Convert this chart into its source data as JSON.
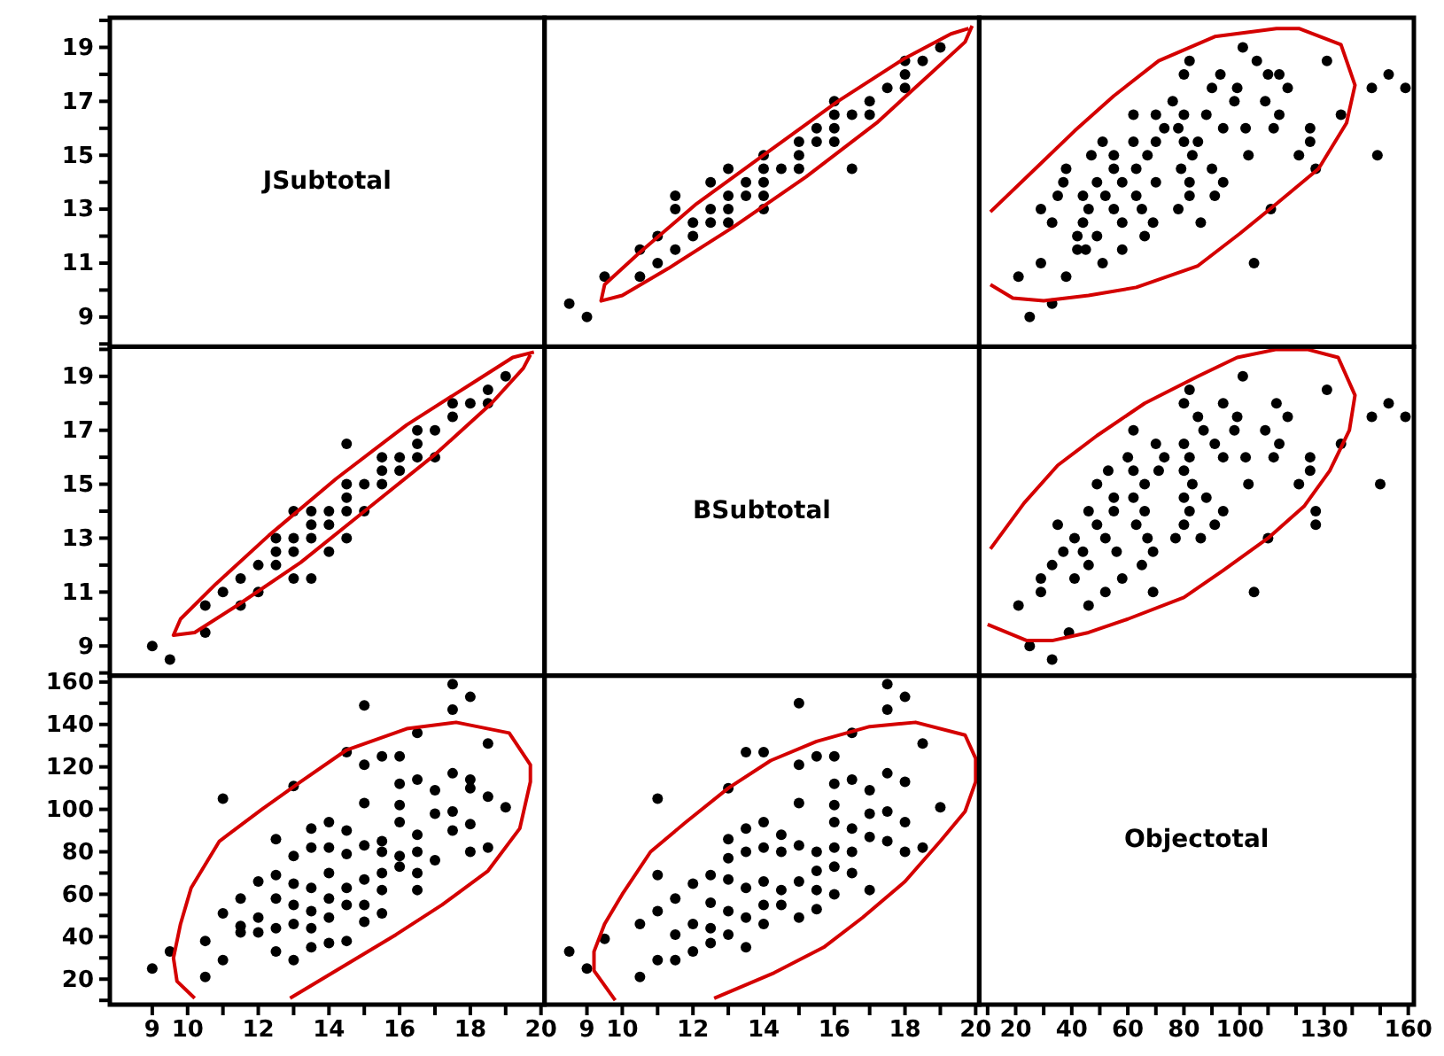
{
  "chart_data": [
    {
      "type": "scatter",
      "title": "JSubtotal",
      "tick_labels": "y",
      "xlim": [
        7.8,
        20.1
      ],
      "ylim": [
        7.9,
        20.1
      ],
      "yticks": [
        {
          "value": 8,
          "label": null
        },
        9,
        {
          "value": 10,
          "label": null
        },
        11,
        {
          "value": 12,
          "label": null
        },
        13,
        {
          "value": 14,
          "label": null
        },
        15,
        {
          "value": 16,
          "label": null
        },
        17,
        {
          "value": 18,
          "label": null
        },
        19,
        {
          "value": 20,
          "label": null
        }
      ]
    },
    {
      "type": "scatter",
      "marker": "circle",
      "tick_labels": false,
      "xlim": [
        7.8,
        20.1
      ],
      "ylim": [
        7.9,
        20.1
      ],
      "series": [
        {
          "type": "scatter",
          "color": "#000000",
          "x": [
            9,
            8.5,
            9.5,
            10.5,
            10.5,
            11,
            11.5,
            11,
            12,
            12,
            12.5,
            12.5,
            11.5,
            11.5,
            13,
            13,
            13,
            13.5,
            13.5,
            12.5,
            14,
            14,
            14,
            14,
            14,
            13,
            14.5,
            15,
            15,
            15,
            15.5,
            15.5,
            16,
            16,
            16,
            16,
            16.5,
            17,
            17,
            17.5,
            18,
            18,
            18.5,
            18,
            19,
            16.5
          ],
          "values": [
            9,
            9.5,
            10.5,
            10.5,
            11.5,
            11,
            11.5,
            12,
            12,
            12.5,
            12.5,
            13,
            13,
            13.5,
            12.5,
            13,
            13.5,
            13.5,
            14,
            14,
            13,
            13.5,
            14,
            14.5,
            15,
            14.5,
            14.5,
            14.5,
            15,
            15.5,
            15.5,
            16,
            15.5,
            16,
            16.5,
            17,
            16.5,
            16.5,
            17,
            17.5,
            17.5,
            18,
            18.5,
            18.5,
            19,
            14.5
          ]
        },
        {
          "type": "line",
          "color": "#d40000",
          "marker": "none",
          "x": [
            19.9,
            19.7,
            18.7,
            17.2,
            15.2,
            13.1,
            11.3,
            10,
            9.4,
            9.5,
            10.5,
            12.1,
            14.1,
            16.1,
            18,
            19.3,
            19.8
          ],
          "values": [
            19.8,
            19.2,
            18,
            16.2,
            14.2,
            12.3,
            10.8,
            9.8,
            9.6,
            10.2,
            11.4,
            13.2,
            15.1,
            17,
            18.6,
            19.5,
            19.7
          ]
        }
      ]
    },
    {
      "type": "scatter",
      "marker": "circle",
      "tick_labels": false,
      "xlim": [
        7,
        162
      ],
      "ylim": [
        7.9,
        20.1
      ],
      "series": [
        {
          "type": "scatter",
          "color": "#000000",
          "x": [
            25,
            33,
            38,
            21,
            29,
            105,
            51,
            58,
            45,
            42,
            66,
            49,
            42,
            86,
            69,
            58,
            44,
            33,
            111,
            78,
            65,
            55,
            46,
            29,
            91,
            82,
            63,
            52,
            44,
            35,
            94,
            82,
            70,
            58,
            49,
            37,
            127,
            90,
            79,
            63,
            55,
            38,
            149,
            121,
            103,
            83,
            67,
            55,
            47,
            125,
            85,
            80,
            70,
            62,
            51,
            125,
            112,
            102,
            94,
            78,
            73,
            136,
            114,
            88,
            80,
            70,
            62,
            109,
            98,
            76,
            159,
            147,
            117,
            99,
            90,
            153,
            114,
            110,
            93,
            80,
            131,
            106,
            82,
            101
          ],
          "values": [
            9,
            9.5,
            10.5,
            10.5,
            11,
            11,
            11,
            11.5,
            11.5,
            11.5,
            12,
            12,
            12,
            12.5,
            12.5,
            12.5,
            12.5,
            12.5,
            13,
            13,
            13,
            13,
            13,
            13,
            13.5,
            13.5,
            13.5,
            13.5,
            13.5,
            13.5,
            14,
            14,
            14,
            14,
            14,
            14,
            14.5,
            14.5,
            14.5,
            14.5,
            14.5,
            14.5,
            15,
            15,
            15,
            15,
            15,
            15,
            15,
            15.5,
            15.5,
            15.5,
            15.5,
            15.5,
            15.5,
            16,
            16,
            16,
            16,
            16,
            16,
            16.5,
            16.5,
            16.5,
            16.5,
            16.5,
            16.5,
            17,
            17,
            17,
            17.5,
            17.5,
            17.5,
            17.5,
            17.5,
            18,
            18,
            18,
            18,
            18,
            18.5,
            18.5,
            18.5,
            19
          ]
        },
        {
          "type": "line",
          "color": "#d40000",
          "marker": "none",
          "x": [
            11,
            27,
            41,
            55,
            71,
            91,
            113,
            121,
            136,
            141,
            138,
            128,
            113,
            100,
            85,
            63,
            46,
            30,
            19,
            11
          ],
          "values": [
            12.9,
            14.5,
            15.9,
            17.2,
            18.5,
            19.4,
            19.7,
            19.7,
            19.1,
            17.6,
            16.2,
            14.5,
            13.2,
            12.1,
            10.9,
            10.1,
            9.8,
            9.6,
            9.7,
            10.2
          ]
        }
      ]
    },
    {
      "type": "scatter",
      "marker": "circle",
      "tick_labels": "y",
      "xlim": [
        7.8,
        20.1
      ],
      "ylim": [
        7.9,
        20.1
      ],
      "yticks": [
        {
          "value": 8,
          "label": null
        },
        9,
        {
          "value": 10,
          "label": null
        },
        11,
        {
          "value": 12,
          "label": null
        },
        13,
        {
          "value": 14,
          "label": null
        },
        15,
        {
          "value": 16,
          "label": null
        },
        17,
        {
          "value": 18,
          "label": null
        },
        19,
        {
          "value": 20,
          "label": null
        }
      ],
      "series": [
        {
          "type": "scatter",
          "color": "#000000",
          "x": [
            9,
            9.5,
            10.5,
            10.5,
            11.5,
            11,
            11.5,
            12,
            12,
            12.5,
            12.5,
            13,
            13,
            13.5,
            12.5,
            13,
            13.5,
            13.5,
            14,
            14,
            13,
            13.5,
            14,
            14.5,
            15,
            14.5,
            14.5,
            14.5,
            15,
            15.5,
            15.5,
            16,
            15.5,
            16,
            16.5,
            17,
            16.5,
            16.5,
            17,
            17.5,
            17.5,
            18,
            18.5,
            18.5,
            19,
            14.5
          ],
          "values": [
            9,
            8.5,
            9.5,
            10.5,
            10.5,
            11,
            11.5,
            11,
            12,
            12,
            12.5,
            12.5,
            11.5,
            11.5,
            13,
            13,
            13,
            13.5,
            13.5,
            12.5,
            14,
            14,
            14,
            14,
            14,
            13,
            14.5,
            15,
            15,
            15,
            15.5,
            15.5,
            16,
            16,
            16,
            16,
            16.5,
            17,
            17,
            17.5,
            18,
            18,
            18.5,
            18,
            19,
            16.5
          ]
        },
        {
          "type": "line",
          "color": "#d40000",
          "marker": "none",
          "x": [
            19.8,
            19.2,
            18,
            16.2,
            14.2,
            12.3,
            10.8,
            9.8,
            9.6,
            10.2,
            11.4,
            13.2,
            15.1,
            17,
            18.6,
            19.5,
            19.7
          ],
          "values": [
            19.9,
            19.7,
            18.7,
            17.2,
            15.2,
            13.1,
            11.3,
            10,
            9.4,
            9.5,
            10.5,
            12.1,
            14.1,
            16.1,
            18,
            19.3,
            19.8
          ]
        }
      ]
    },
    {
      "type": "other",
      "title": "BSubtotal"
    },
    {
      "type": "scatter",
      "marker": "circle",
      "tick_labels": false,
      "xlim": [
        7,
        162
      ],
      "ylim": [
        7.9,
        20.1
      ],
      "series": [
        {
          "type": "scatter",
          "color": "#000000",
          "x": [
            33,
            25,
            39,
            21,
            46,
            105,
            69,
            52,
            29,
            58,
            41,
            29,
            65,
            46,
            33,
            69,
            56,
            44,
            37,
            110,
            86,
            77,
            67,
            52,
            41,
            127,
            91,
            80,
            63,
            49,
            35,
            127,
            94,
            82,
            66,
            55,
            46,
            88,
            80,
            62,
            55,
            150,
            121,
            103,
            83,
            66,
            49,
            125,
            80,
            71,
            62,
            53,
            125,
            112,
            102,
            94,
            82,
            73,
            60,
            136,
            114,
            91,
            80,
            70,
            109,
            98,
            87,
            62,
            159,
            147,
            117,
            99,
            85,
            153,
            113,
            94,
            80,
            131,
            82,
            101
          ],
          "values": [
            8.5,
            9,
            9.5,
            10.5,
            10.5,
            11,
            11,
            11,
            11,
            11.5,
            11.5,
            11.5,
            12,
            12,
            12,
            12.5,
            12.5,
            12.5,
            12.5,
            13,
            13,
            13,
            13,
            13,
            13,
            13.5,
            13.5,
            13.5,
            13.5,
            13.5,
            13.5,
            14,
            14,
            14,
            14,
            14,
            14,
            14.5,
            14.5,
            14.5,
            14.5,
            15,
            15,
            15,
            15,
            15,
            15,
            15.5,
            15.5,
            15.5,
            15.5,
            15.5,
            16,
            16,
            16,
            16,
            16,
            16,
            16,
            16.5,
            16.5,
            16.5,
            16.5,
            16.5,
            17,
            17,
            17,
            17,
            17.5,
            17.5,
            17.5,
            17.5,
            17.5,
            18,
            18,
            18,
            18,
            18.5,
            18.5,
            19
          ]
        },
        {
          "type": "line",
          "color": "#d40000",
          "marker": "none",
          "x": [
            11,
            23,
            35,
            49,
            66,
            85,
            99,
            113,
            124,
            135,
            141,
            139,
            132,
            123,
            110,
            94,
            80,
            60,
            46,
            33,
            24,
            10
          ],
          "values": [
            12.6,
            14.3,
            15.7,
            16.8,
            18,
            19,
            19.7,
            20,
            20,
            19.7,
            18.3,
            17,
            15.5,
            14.2,
            13,
            11.8,
            10.8,
            10,
            9.5,
            9.2,
            9.2,
            9.8
          ]
        }
      ]
    },
    {
      "type": "scatter",
      "marker": "circle",
      "xlim": [
        7.8,
        20.1
      ],
      "ylim": [
        8,
        163
      ],
      "xticks": [
        9,
        10,
        {
          "value": 11,
          "label": null
        },
        12,
        {
          "value": 13,
          "label": null
        },
        14,
        {
          "value": 15,
          "label": null
        },
        16,
        {
          "value": 17,
          "label": null
        },
        18,
        {
          "value": 19,
          "label": null
        },
        20
      ],
      "yticks": [
        {
          "value": 10,
          "label": null
        },
        20,
        {
          "value": 30,
          "label": null
        },
        40,
        {
          "value": 50,
          "label": null
        },
        60,
        {
          "value": 70,
          "label": null
        },
        80,
        {
          "value": 90,
          "label": null
        },
        100,
        {
          "value": 110,
          "label": null
        },
        120,
        {
          "value": 130,
          "label": null
        },
        140,
        {
          "value": 150,
          "label": null
        },
        160
      ],
      "series": [
        {
          "type": "scatter",
          "color": "#000000",
          "x": [
            9,
            9.5,
            10.5,
            10.5,
            11,
            11,
            11,
            11.5,
            11.5,
            11.5,
            12,
            12,
            12,
            12.5,
            12.5,
            12.5,
            12.5,
            12.5,
            13,
            13,
            13,
            13,
            13,
            13,
            13.5,
            13.5,
            13.5,
            13.5,
            13.5,
            13.5,
            14,
            14,
            14,
            14,
            14,
            14,
            14.5,
            14.5,
            14.5,
            14.5,
            14.5,
            14.5,
            15,
            15,
            15,
            15,
            15,
            15,
            15,
            15.5,
            15.5,
            15.5,
            15.5,
            15.5,
            15.5,
            16,
            16,
            16,
            16,
            16,
            16,
            16.5,
            16.5,
            16.5,
            16.5,
            16.5,
            16.5,
            17,
            17,
            17,
            17.5,
            17.5,
            17.5,
            17.5,
            17.5,
            18,
            18,
            18,
            18,
            18,
            18.5,
            18.5,
            18.5,
            19
          ],
          "values": [
            25,
            33,
            38,
            21,
            29,
            105,
            51,
            58,
            45,
            42,
            66,
            49,
            42,
            86,
            69,
            58,
            44,
            33,
            111,
            78,
            65,
            55,
            46,
            29,
            91,
            82,
            63,
            52,
            44,
            35,
            94,
            82,
            70,
            58,
            49,
            37,
            127,
            90,
            79,
            63,
            55,
            38,
            149,
            121,
            103,
            83,
            67,
            55,
            47,
            125,
            85,
            80,
            70,
            62,
            51,
            125,
            112,
            102,
            94,
            78,
            73,
            136,
            114,
            88,
            80,
            70,
            62,
            109,
            98,
            76,
            159,
            147,
            117,
            99,
            90,
            153,
            114,
            110,
            93,
            80,
            131,
            106,
            82,
            101
          ]
        },
        {
          "type": "line",
          "color": "#d40000",
          "marker": "none",
          "x": [
            12.9,
            14.5,
            15.9,
            17.2,
            18.5,
            19.4,
            19.7,
            19.7,
            19.1,
            17.6,
            16.2,
            14.5,
            13.2,
            12.1,
            10.9,
            10.1,
            9.8,
            9.6,
            9.7,
            10.2
          ],
          "values": [
            11,
            27,
            41,
            55,
            71,
            91,
            113,
            121,
            136,
            141,
            138,
            128,
            113,
            100,
            85,
            63,
            46,
            30,
            19,
            11
          ]
        }
      ]
    },
    {
      "type": "scatter",
      "marker": "circle",
      "tick_labels": "x",
      "xlim": [
        7.8,
        20.1
      ],
      "ylim": [
        8,
        163
      ],
      "xticks": [
        9,
        10,
        {
          "value": 11,
          "label": null
        },
        12,
        {
          "value": 13,
          "label": null
        },
        14,
        {
          "value": 15,
          "label": null
        },
        16,
        {
          "value": 17,
          "label": null
        },
        18,
        {
          "value": 19,
          "label": null
        },
        20
      ],
      "series": [
        {
          "type": "scatter",
          "color": "#000000",
          "x": [
            8.5,
            9,
            9.5,
            10.5,
            10.5,
            11,
            11,
            11,
            11,
            11.5,
            11.5,
            11.5,
            12,
            12,
            12,
            12.5,
            12.5,
            12.5,
            12.5,
            13,
            13,
            13,
            13,
            13,
            13,
            13.5,
            13.5,
            13.5,
            13.5,
            13.5,
            13.5,
            14,
            14,
            14,
            14,
            14,
            14,
            14.5,
            14.5,
            14.5,
            14.5,
            15,
            15,
            15,
            15,
            15,
            15,
            15.5,
            15.5,
            15.5,
            15.5,
            15.5,
            16,
            16,
            16,
            16,
            16,
            16,
            16,
            16.5,
            16.5,
            16.5,
            16.5,
            16.5,
            17,
            17,
            17,
            17,
            17.5,
            17.5,
            17.5,
            17.5,
            17.5,
            18,
            18,
            18,
            18,
            18.5,
            18.5,
            19
          ],
          "values": [
            33,
            25,
            39,
            21,
            46,
            105,
            69,
            52,
            29,
            58,
            41,
            29,
            65,
            46,
            33,
            69,
            56,
            44,
            37,
            110,
            86,
            77,
            67,
            52,
            41,
            127,
            91,
            80,
            63,
            49,
            35,
            127,
            94,
            82,
            66,
            55,
            46,
            88,
            80,
            62,
            55,
            150,
            121,
            103,
            83,
            66,
            49,
            125,
            80,
            71,
            62,
            53,
            125,
            112,
            102,
            94,
            82,
            73,
            60,
            136,
            114,
            91,
            80,
            70,
            109,
            98,
            87,
            62,
            159,
            147,
            117,
            99,
            85,
            153,
            113,
            94,
            80,
            131,
            82,
            101
          ]
        },
        {
          "type": "line",
          "color": "#d40000",
          "marker": "none",
          "x": [
            12.6,
            14.3,
            15.7,
            16.8,
            18,
            19,
            19.7,
            20,
            20,
            19.7,
            18.3,
            17,
            15.5,
            14.2,
            13,
            11.8,
            10.8,
            10,
            9.5,
            9.2,
            9.2,
            9.8
          ],
          "values": [
            11,
            23,
            35,
            49,
            66,
            85,
            99,
            113,
            124,
            135,
            141,
            139,
            132,
            123,
            110,
            94,
            80,
            60,
            46,
            33,
            24,
            10
          ]
        }
      ]
    },
    {
      "type": "scatter",
      "title": "Objectotal",
      "tick_labels": "x",
      "ylim": [
        8,
        163
      ],
      "xlim": [
        7,
        162
      ],
      "xticks": [
        {
          "value": 10,
          "label": null
        },
        20,
        {
          "value": 30,
          "label": null
        },
        40,
        {
          "value": 50,
          "label": null
        },
        60,
        {
          "value": 70,
          "label": null
        },
        80,
        {
          "value": 90,
          "label": null
        },
        100,
        {
          "value": 110,
          "label": null
        },
        {
          "value": 120,
          "label": null
        },
        130,
        {
          "value": 140,
          "label": null
        },
        {
          "value": 150,
          "label": null
        },
        160
      ]
    }
  ]
}
